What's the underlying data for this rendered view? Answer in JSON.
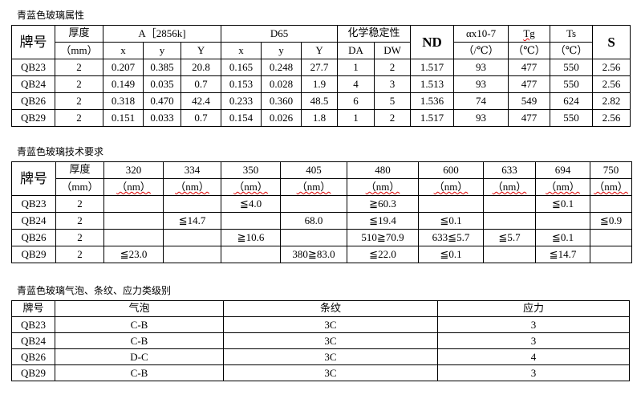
{
  "t1": {
    "title": "青蓝色玻璃属性",
    "h": {
      "brand": "牌号",
      "thick": "厚度",
      "mm": "（mm）",
      "A": "A［2856k]",
      "D65": "D65",
      "chem": "化学稳定性",
      "ND": "ND",
      "alpha": "αx10-7",
      "alpha_u": "（/℃）",
      "Tg": "Tg",
      "Tg_u": "（℃）",
      "Ts": "Ts",
      "Ts_u": "（℃）",
      "S": "S",
      "x": "x",
      "y": "y",
      "Y": "Y",
      "DA": "DA",
      "DW": "DW"
    },
    "rows": [
      [
        "QB23",
        "2",
        "0.207",
        "0.385",
        "20.8",
        "0.165",
        "0.248",
        "27.7",
        "1",
        "2",
        "1.517",
        "93",
        "477",
        "550",
        "2.56"
      ],
      [
        "QB24",
        "2",
        "0.149",
        "0.035",
        "0.7",
        "0.153",
        "0.028",
        "1.9",
        "4",
        "3",
        "1.513",
        "93",
        "477",
        "550",
        "2.56"
      ],
      [
        "QB26",
        "2",
        "0.318",
        "0.470",
        "42.4",
        "0.233",
        "0.360",
        "48.5",
        "6",
        "5",
        "1.536",
        "74",
        "549",
        "624",
        "2.82"
      ],
      [
        "QB29",
        "2",
        "0.151",
        "0.033",
        "0.7",
        "0.154",
        "0.026",
        "1.8",
        "1",
        "2",
        "1.517",
        "93",
        "477",
        "550",
        "2.56"
      ]
    ]
  },
  "t2": {
    "title": "青蓝色玻璃技术要求",
    "h": {
      "brand": "牌号",
      "thick": "厚度",
      "mm": "（mm）",
      "nm": "（nm）",
      "wl": [
        "320",
        "334",
        "350",
        "405",
        "480",
        "600",
        "633",
        "694",
        "750"
      ]
    },
    "rows": [
      [
        "QB23",
        "2",
        "",
        "",
        "≦4.0",
        "",
        "≧60.3",
        "",
        "",
        "≦0.1",
        ""
      ],
      [
        "QB24",
        "2",
        "",
        "≦14.7",
        "",
        "68.0",
        "≦19.4",
        "≦0.1",
        "",
        "",
        "≦0.9"
      ],
      [
        "QB26",
        "2",
        "",
        "",
        "≧10.6",
        "",
        "510≧70.9",
        "633≦5.7",
        "≦5.7",
        "≦0.1",
        ""
      ],
      [
        "QB29",
        "2",
        "≦23.0",
        "",
        "",
        "380≧83.0",
        "≦22.0",
        "≦0.1",
        "",
        "≦14.7",
        ""
      ]
    ]
  },
  "t3": {
    "title": "青蓝色玻璃气泡、条纹、应力类级别",
    "h": [
      "牌号",
      "气泡",
      "条纹",
      "应力"
    ],
    "rows": [
      [
        "QB23",
        "C-B",
        "3C",
        "3"
      ],
      [
        "QB24",
        "C-B",
        "3C",
        "3"
      ],
      [
        "QB26",
        "D-C",
        "3C",
        "4"
      ],
      [
        "QB29",
        "C-B",
        "3C",
        "3"
      ]
    ]
  }
}
